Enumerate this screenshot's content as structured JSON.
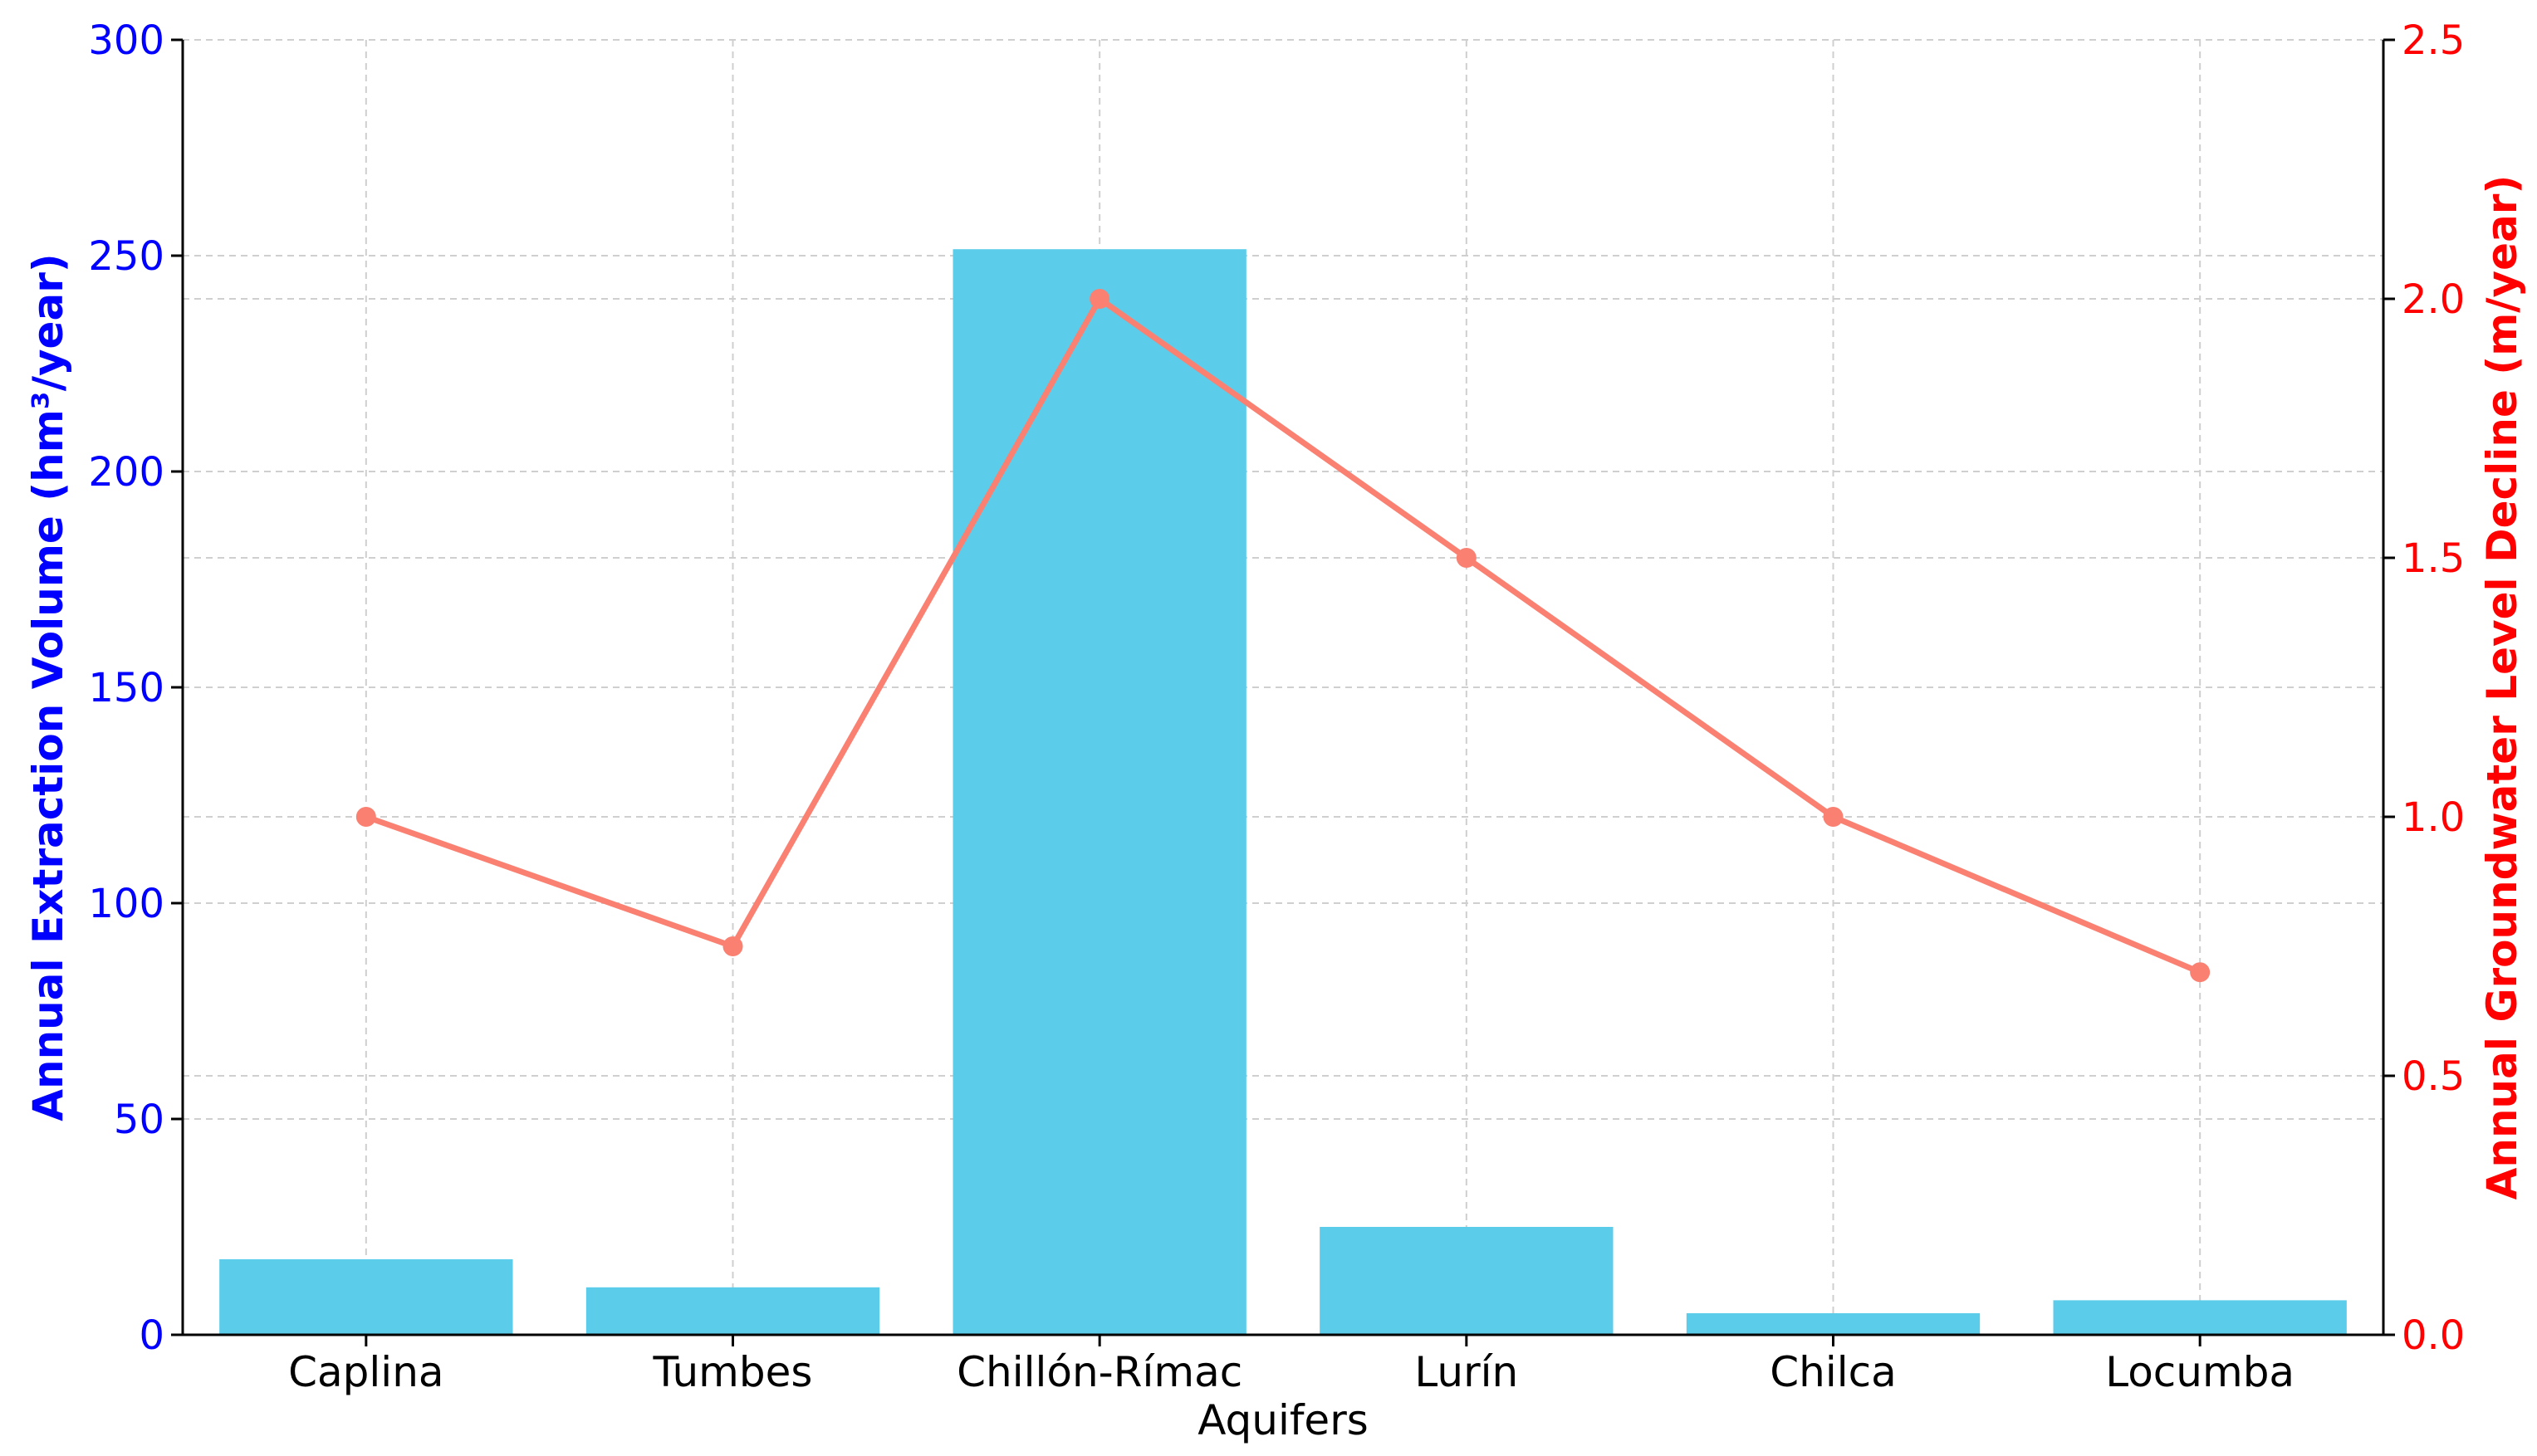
{
  "chart_data": {
    "type": "bar",
    "categories": [
      "Caplina",
      "Tumbes",
      "Chillón-Rímac",
      "Lurín",
      "Chilca",
      "Locumba"
    ],
    "series": [
      {
        "axis": "left",
        "type": "bar",
        "color": "#5bcdea",
        "values": [
          17.5,
          11,
          251.5,
          25,
          5,
          8
        ]
      },
      {
        "axis": "right",
        "type": "line",
        "color": "#fa8072",
        "values": [
          1.0,
          0.75,
          2.0,
          1.5,
          1.0,
          0.7
        ]
      }
    ],
    "xlabel": "Aquifers",
    "ylabel_left": "Annual Extraction Volume (hm³/year)",
    "ylabel_right": "Annual Groundwater Level Decline (m/year)",
    "ylim_left": [
      0,
      300
    ],
    "ylim_right": [
      0,
      2.5
    ],
    "yticks_left": [
      "0",
      "50",
      "100",
      "150",
      "200",
      "250",
      "300"
    ],
    "yticks_right": [
      "0.0",
      "0.5",
      "1.0",
      "1.5",
      "2.0",
      "2.5"
    ],
    "grid": true,
    "left_axis_color": "#0000ff",
    "right_axis_color": "#ff0000"
  }
}
